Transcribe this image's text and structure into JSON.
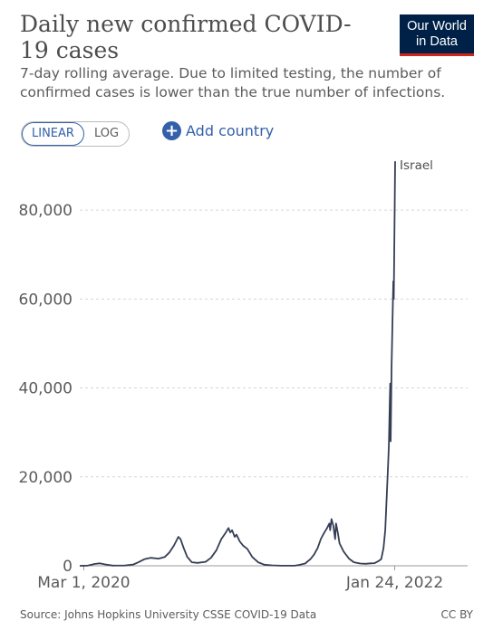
{
  "header": {
    "title": "Daily new confirmed COVID-19 cases",
    "subtitle": "7-day rolling average. Due to limited testing, the number of confirmed cases is lower than the true number of infections.",
    "logo_line1": "Our World",
    "logo_line2": "in Data"
  },
  "controls": {
    "scale_linear": "LINEAR",
    "scale_log": "LOG",
    "active_scale": "LINEAR",
    "add_country": "Add country"
  },
  "footer": {
    "source": "Source: Johns Hopkins University CSSE COVID-19 Data",
    "license": "CC BY"
  },
  "colors": {
    "line": "#353e55",
    "brand_navy": "#002147",
    "brand_red": "#ce261e",
    "accent_blue": "#3360a9"
  },
  "chart_data": {
    "type": "line",
    "title": "Daily new confirmed COVID-19 cases",
    "xlabel": "",
    "ylabel": "",
    "xlim": [
      "2020-02-21",
      "2022-01-29"
    ],
    "ylim": [
      0,
      90000
    ],
    "yticks": [
      0,
      20000,
      40000,
      60000,
      80000
    ],
    "ytick_labels": [
      "0",
      "20,000",
      "40,000",
      "60,000",
      "80,000"
    ],
    "xtick_labels": [
      "Mar 1, 2020",
      "Jan 24, 2022"
    ],
    "xtick_dates": [
      "2020-03-01",
      "2022-01-24"
    ],
    "grid": "horizontal dashed",
    "series": [
      {
        "name": "Israel",
        "points": [
          [
            "2020-02-21",
            0
          ],
          [
            "2020-03-10",
            50
          ],
          [
            "2020-03-25",
            400
          ],
          [
            "2020-04-05",
            550
          ],
          [
            "2020-04-18",
            300
          ],
          [
            "2020-05-05",
            40
          ],
          [
            "2020-06-01",
            60
          ],
          [
            "2020-06-20",
            300
          ],
          [
            "2020-07-01",
            800
          ],
          [
            "2020-07-15",
            1500
          ],
          [
            "2020-07-28",
            1800
          ],
          [
            "2020-08-15",
            1600
          ],
          [
            "2020-08-29",
            2000
          ],
          [
            "2020-09-08",
            3000
          ],
          [
            "2020-09-18",
            4500
          ],
          [
            "2020-09-28",
            6500
          ],
          [
            "2020-10-03",
            6000
          ],
          [
            "2020-10-10",
            4000
          ],
          [
            "2020-10-18",
            2000
          ],
          [
            "2020-10-28",
            800
          ],
          [
            "2020-11-10",
            650
          ],
          [
            "2020-11-28",
            900
          ],
          [
            "2020-12-10",
            1800
          ],
          [
            "2020-12-22",
            3500
          ],
          [
            "2021-01-02",
            6000
          ],
          [
            "2021-01-12",
            7500
          ],
          [
            "2021-01-18",
            8500
          ],
          [
            "2021-01-22",
            7500
          ],
          [
            "2021-01-26",
            8000
          ],
          [
            "2021-02-01",
            6500
          ],
          [
            "2021-02-05",
            7000
          ],
          [
            "2021-02-12",
            5500
          ],
          [
            "2021-02-20",
            4500
          ],
          [
            "2021-03-01",
            3800
          ],
          [
            "2021-03-12",
            2000
          ],
          [
            "2021-03-25",
            800
          ],
          [
            "2021-04-08",
            250
          ],
          [
            "2021-04-25",
            100
          ],
          [
            "2021-05-15",
            30
          ],
          [
            "2021-06-01",
            15
          ],
          [
            "2021-06-15",
            20
          ],
          [
            "2021-06-25",
            200
          ],
          [
            "2021-07-08",
            500
          ],
          [
            "2021-07-20",
            1500
          ],
          [
            "2021-07-28",
            2500
          ],
          [
            "2021-08-05",
            4000
          ],
          [
            "2021-08-12",
            6000
          ],
          [
            "2021-08-20",
            7500
          ],
          [
            "2021-08-26",
            8500
          ],
          [
            "2021-08-31",
            9500
          ],
          [
            "2021-09-02",
            8000
          ],
          [
            "2021-09-05",
            10500
          ],
          [
            "2021-09-09",
            9000
          ],
          [
            "2021-09-13",
            6000
          ],
          [
            "2021-09-15",
            9500
          ],
          [
            "2021-09-19",
            7500
          ],
          [
            "2021-09-23",
            5000
          ],
          [
            "2021-10-02",
            3200
          ],
          [
            "2021-10-14",
            1600
          ],
          [
            "2021-10-25",
            800
          ],
          [
            "2021-11-08",
            500
          ],
          [
            "2021-11-20",
            450
          ],
          [
            "2021-12-01",
            550
          ],
          [
            "2021-12-10",
            600
          ],
          [
            "2021-12-18",
            1000
          ],
          [
            "2021-12-25",
            1500
          ],
          [
            "2021-12-30",
            4000
          ],
          [
            "2022-01-03",
            8000
          ],
          [
            "2022-01-06",
            15000
          ],
          [
            "2022-01-09",
            22000
          ],
          [
            "2022-01-11",
            27000
          ],
          [
            "2022-01-12",
            32000
          ],
          [
            "2022-01-13",
            37000
          ],
          [
            "2022-01-14",
            41000
          ],
          [
            "2022-01-15",
            28000
          ],
          [
            "2022-01-17",
            45000
          ],
          [
            "2022-01-19",
            55000
          ],
          [
            "2022-01-20",
            60000
          ],
          [
            "2022-01-21",
            64000
          ],
          [
            "2022-01-22",
            60000
          ],
          [
            "2022-01-23",
            70000
          ],
          [
            "2022-01-24",
            80000
          ],
          [
            "2022-01-25",
            91000
          ]
        ]
      }
    ]
  }
}
